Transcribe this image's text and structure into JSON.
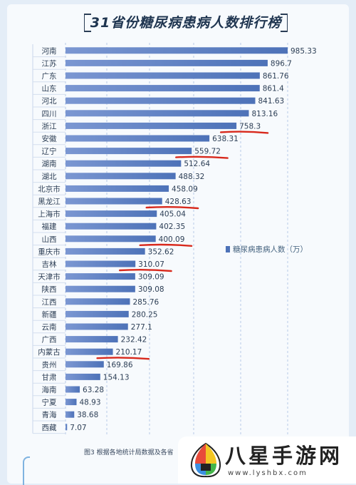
{
  "title": "31省份糖尿病患病人数排行榜",
  "legend_label": "糖尿病患病人数（万）",
  "caption": "图3 根据各地统计局数据及各省",
  "watermark": {
    "name": "八星手游网",
    "url": "www.lyshbx.com"
  },
  "colors": {
    "bar": "#4d72b8",
    "bar_light": "#7b97d2",
    "underline": "#d8291c",
    "grid": "#b7c9e6",
    "label": "#2c3e55"
  },
  "chart_data": {
    "type": "bar",
    "orientation": "horizontal",
    "title": "31省份糖尿病患病人数排行榜",
    "series": [
      {
        "name": "糖尿病患病人数（万）"
      }
    ],
    "categories": [
      "河南",
      "江苏",
      "广东",
      "山东",
      "河北",
      "四川",
      "浙江",
      "安徽",
      "辽宁",
      "湖南",
      "湖北",
      "北京市",
      "黑龙江",
      "上海市",
      "福建",
      "山西",
      "重庆市",
      "吉林",
      "天津市",
      "陕西",
      "江西",
      "新疆",
      "云南",
      "广西",
      "内蒙古",
      "贵州",
      "甘肃",
      "海南",
      "宁夏",
      "青海",
      "西藏"
    ],
    "values": [
      985.33,
      896.7,
      861.76,
      861.4,
      841.63,
      813.16,
      758.3,
      638.31,
      559.72,
      512.64,
      488.32,
      458.09,
      428.63,
      405.04,
      402.35,
      400.09,
      352.62,
      310.07,
      309.09,
      309.08,
      285.76,
      280.25,
      277.1,
      232.42,
      210.17,
      169.86,
      154.13,
      63.28,
      48.93,
      38.68,
      7.07
    ],
    "value_labels": [
      "985.33",
      "896.7",
      "861.76",
      "861.4",
      "841.63",
      "813.16",
      "758.3",
      "638.31",
      "559.72",
      "512.64",
      "488.32",
      "458.09",
      "428.63",
      "405.04",
      "402.35",
      "400.09",
      "352.62",
      "310.07",
      "309.09",
      "309.08",
      "285.76",
      "280.25",
      "277.1",
      "232.42",
      "210.17",
      "169.86",
      "154.13",
      "63.28",
      "48.93",
      "38.68",
      "7.07"
    ],
    "underlined": [
      "浙江",
      "辽宁",
      "黑龙江",
      "山西",
      "吉林",
      "内蒙古"
    ],
    "xlim": [
      0,
      1000
    ],
    "grid": true,
    "legend_position": "right"
  }
}
